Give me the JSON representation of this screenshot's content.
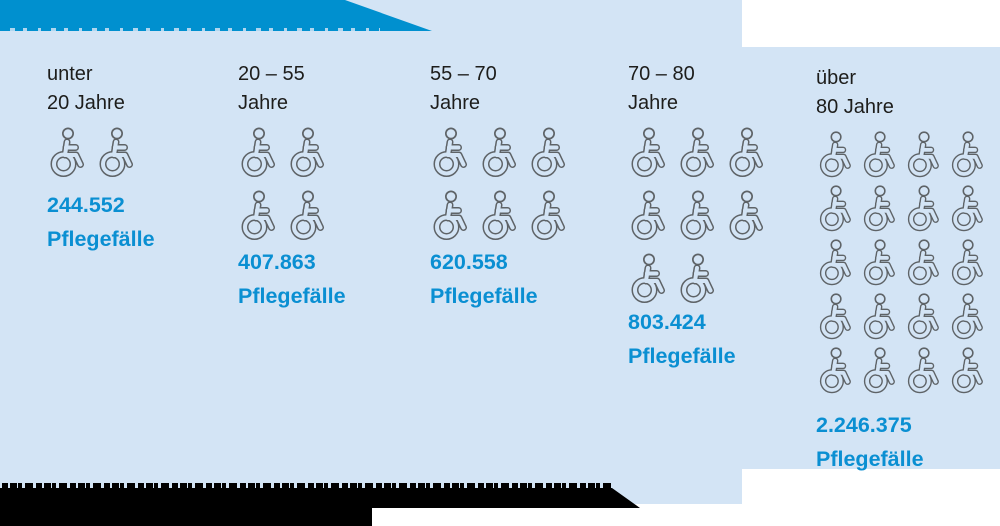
{
  "banner": {
    "note_text_visible": "",
    "color": "#0090cf"
  },
  "columns": [
    {
      "age_label_line1": "unter",
      "age_label_line2": "20 Jahre",
      "value": "244.552",
      "unit": "Pflegefälle",
      "icon_rows": [
        2
      ]
    },
    {
      "age_label_line1": "20 – 55",
      "age_label_line2": "Jahre",
      "value": "407.863",
      "unit": "Pflegefälle",
      "icon_rows": [
        2,
        2
      ]
    },
    {
      "age_label_line1": "55 – 70",
      "age_label_line2": "Jahre",
      "value": "620.558",
      "unit": "Pflegefälle",
      "icon_rows": [
        3,
        3
      ]
    },
    {
      "age_label_line1": "70 – 80",
      "age_label_line2": "Jahre",
      "value": "803.424",
      "unit": "Pflegefälle",
      "icon_rows": [
        3,
        3,
        2
      ]
    },
    {
      "age_label_line1": "über",
      "age_label_line2": "80 Jahre",
      "value": "2.246.375",
      "unit": "Pflegefälle",
      "icon_rows": [
        4,
        4,
        4,
        4,
        4
      ]
    }
  ],
  "chart_data": {
    "type": "pictogram",
    "categories": [
      "unter 20 Jahre",
      "20–55 Jahre",
      "55–70 Jahre",
      "70–80 Jahre",
      "über 80 Jahre"
    ],
    "values": [
      244552,
      407863,
      620558,
      803424,
      2246375
    ],
    "value_labels": [
      "244.552",
      "407.863",
      "620.558",
      "803.424",
      "2.246.375"
    ],
    "unit": "Pflegefälle",
    "icon": "wheelchair-user-outline",
    "icons_per_category": [
      2,
      4,
      6,
      8,
      20
    ],
    "icon_rows_per_category": [
      [
        2
      ],
      [
        2,
        2
      ],
      [
        3,
        3
      ],
      [
        3,
        3,
        2
      ],
      [
        4,
        4,
        4,
        4,
        4
      ]
    ],
    "legend": "none",
    "orientation": "columns-left-to-right-ascending-age"
  },
  "colors": {
    "panel_background": "#d3e4f5",
    "banner_blue": "#0090cf",
    "value_blue": "#0a8fd2",
    "label_black": "#1d1d1b",
    "icon_gray": "#5e6367",
    "footer_black": "#000000"
  }
}
